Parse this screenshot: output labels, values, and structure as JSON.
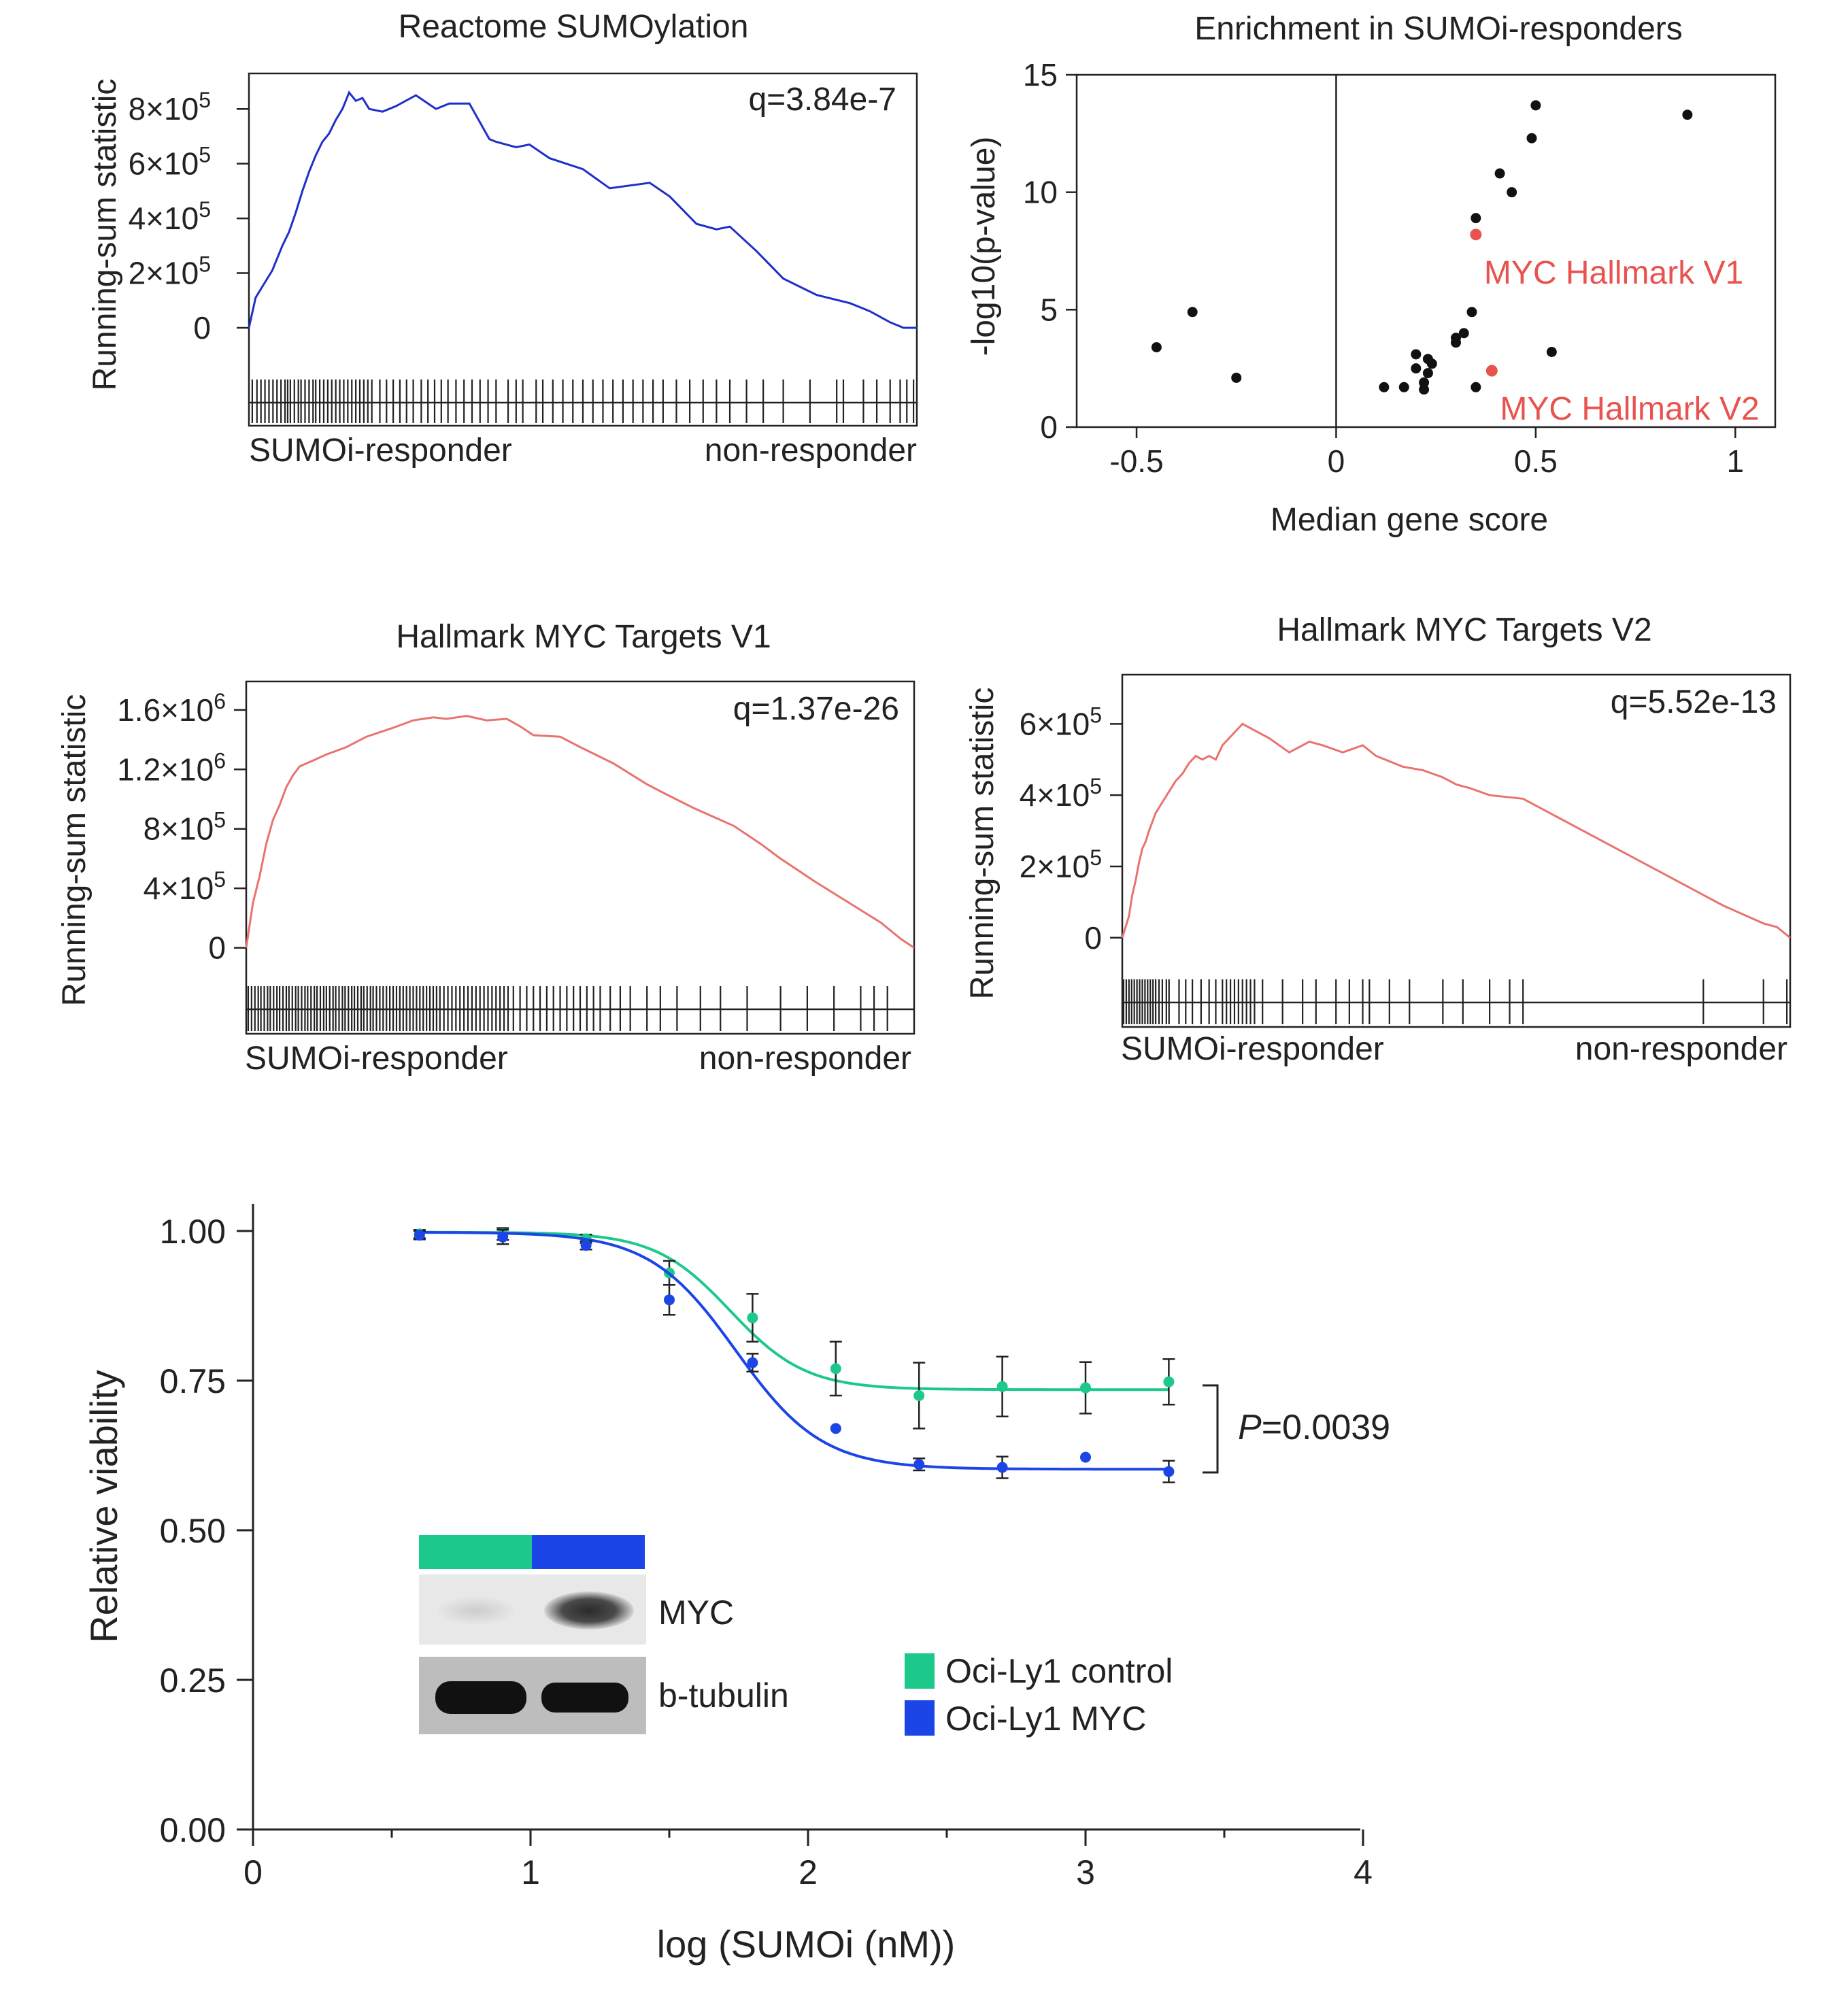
{
  "colors": {
    "reactome": "#1f2fc8",
    "myc": "#e8746d",
    "highlight": "#e8534f",
    "points": "#111111",
    "control": "#1dc98a",
    "myc_line": "#1b45e6"
  },
  "chart_data": [
    {
      "id": "reactome",
      "type": "line",
      "title": "Reactome SUMOylation",
      "ylabel": "Running-sum statistic",
      "annotation": "q=3.84e-7",
      "xlabel_left": "SUMOi-responder",
      "xlabel_right": "non-responder",
      "ylim": [
        -20000,
        900000
      ],
      "yticks": [
        {
          "v": 0,
          "base": "0",
          "exp": ""
        },
        {
          "v": 200000,
          "base": "2×10",
          "exp": "5"
        },
        {
          "v": 400000,
          "base": "4×10",
          "exp": "5"
        },
        {
          "v": 600000,
          "base": "6×10",
          "exp": "5"
        },
        {
          "v": 800000,
          "base": "8×10",
          "exp": "5"
        }
      ],
      "x": [
        0,
        0.01,
        0.02,
        0.035,
        0.05,
        0.06,
        0.07,
        0.08,
        0.09,
        0.1,
        0.11,
        0.12,
        0.13,
        0.14,
        0.15,
        0.16,
        0.17,
        0.18,
        0.2,
        0.22,
        0.25,
        0.28,
        0.3,
        0.33,
        0.36,
        0.37,
        0.4,
        0.42,
        0.45,
        0.5,
        0.54,
        0.6,
        0.63,
        0.67,
        0.7,
        0.72,
        0.76,
        0.8,
        0.85,
        0.9,
        0.93,
        0.96,
        0.98,
        1.0
      ],
      "values": [
        0,
        110000,
        150000,
        210000,
        300000,
        350000,
        420000,
        500000,
        570000,
        630000,
        680000,
        710000,
        760000,
        800000,
        860000,
        830000,
        840000,
        800000,
        790000,
        810000,
        850000,
        800000,
        820000,
        820000,
        690000,
        680000,
        660000,
        670000,
        620000,
        580000,
        510000,
        530000,
        480000,
        380000,
        360000,
        370000,
        280000,
        180000,
        120000,
        90000,
        60000,
        20000,
        0,
        0
      ],
      "hits": [
        0.005,
        0.012,
        0.018,
        0.024,
        0.03,
        0.036,
        0.042,
        0.048,
        0.054,
        0.058,
        0.062,
        0.068,
        0.074,
        0.078,
        0.084,
        0.09,
        0.096,
        0.1,
        0.106,
        0.112,
        0.118,
        0.124,
        0.13,
        0.136,
        0.142,
        0.148,
        0.154,
        0.16,
        0.166,
        0.172,
        0.178,
        0.184,
        0.196,
        0.206,
        0.216,
        0.226,
        0.236,
        0.246,
        0.258,
        0.268,
        0.278,
        0.288,
        0.298,
        0.31,
        0.322,
        0.334,
        0.346,
        0.358,
        0.37,
        0.388,
        0.4,
        0.41,
        0.43,
        0.44,
        0.455,
        0.47,
        0.485,
        0.5,
        0.515,
        0.53,
        0.545,
        0.56,
        0.575,
        0.59,
        0.605,
        0.62,
        0.64,
        0.66,
        0.68,
        0.7,
        0.72,
        0.745,
        0.77,
        0.8,
        0.84,
        0.88,
        0.89,
        0.92,
        0.94,
        0.96,
        0.975,
        0.985,
        0.995
      ]
    },
    {
      "id": "enrichment",
      "type": "scatter",
      "title": "Enrichment in SUMOi-responders",
      "xlabel": "Median gene score",
      "ylabel": "-log10(p-value)",
      "xlim": [
        -0.65,
        1.1
      ],
      "ylim": [
        0,
        15
      ],
      "xticks": [
        -0.5,
        0,
        0.5,
        1
      ],
      "xtick_labels": [
        "-0.5",
        "0",
        "0.5",
        "1"
      ],
      "yticks": [
        0,
        5,
        10,
        15
      ],
      "ytick_labels": [
        "0",
        "5",
        "10",
        "15"
      ],
      "points": [
        [
          -0.45,
          3.4
        ],
        [
          -0.36,
          4.9
        ],
        [
          -0.25,
          2.1
        ],
        [
          0.12,
          1.7
        ],
        [
          0.17,
          1.7
        ],
        [
          0.2,
          2.5
        ],
        [
          0.2,
          3.1
        ],
        [
          0.22,
          1.9
        ],
        [
          0.22,
          1.6
        ],
        [
          0.23,
          2.3
        ],
        [
          0.23,
          2.9
        ],
        [
          0.24,
          2.7
        ],
        [
          0.3,
          3.8
        ],
        [
          0.3,
          3.6
        ],
        [
          0.32,
          4.0
        ],
        [
          0.34,
          4.9
        ],
        [
          0.35,
          1.7
        ],
        [
          0.35,
          8.9
        ],
        [
          0.41,
          10.8
        ],
        [
          0.44,
          10.0
        ],
        [
          0.49,
          12.3
        ],
        [
          0.5,
          13.7
        ],
        [
          0.54,
          3.2
        ],
        [
          0.88,
          13.3
        ]
      ],
      "highlights": [
        {
          "x": 0.35,
          "y": 8.2,
          "label": "MYC Hallmark V1"
        },
        {
          "x": 0.39,
          "y": 2.4,
          "label": "MYC Hallmark V2"
        }
      ]
    },
    {
      "id": "myc_v1",
      "type": "line",
      "title": "Hallmark MYC Targets V1",
      "ylabel": "Running-sum statistic",
      "annotation": "q=1.37e-26",
      "xlabel_left": "SUMOi-responder",
      "xlabel_right": "non-responder",
      "ylim": [
        -20000,
        1700000
      ],
      "yticks": [
        {
          "v": 0,
          "base": "0",
          "exp": ""
        },
        {
          "v": 400000,
          "base": "4×10",
          "exp": "5"
        },
        {
          "v": 800000,
          "base": "8×10",
          "exp": "5"
        },
        {
          "v": 1200000,
          "base": "1.2×10",
          "exp": "6"
        },
        {
          "v": 1600000,
          "base": "1.6×10",
          "exp": "6"
        }
      ],
      "x": [
        0,
        0.01,
        0.02,
        0.03,
        0.04,
        0.05,
        0.06,
        0.07,
        0.08,
        0.1,
        0.12,
        0.15,
        0.18,
        0.22,
        0.25,
        0.28,
        0.3,
        0.33,
        0.36,
        0.39,
        0.41,
        0.43,
        0.47,
        0.5,
        0.55,
        0.6,
        0.63,
        0.67,
        0.7,
        0.73,
        0.77,
        0.8,
        0.85,
        0.9,
        0.95,
        0.98,
        1.0
      ],
      "values": [
        0,
        300000,
        480000,
        700000,
        860000,
        960000,
        1080000,
        1160000,
        1220000,
        1260000,
        1300000,
        1350000,
        1420000,
        1480000,
        1530000,
        1550000,
        1540000,
        1560000,
        1530000,
        1540000,
        1490000,
        1430000,
        1420000,
        1350000,
        1240000,
        1100000,
        1030000,
        940000,
        880000,
        820000,
        700000,
        600000,
        450000,
        310000,
        170000,
        60000,
        0
      ],
      "hits": [
        0.003,
        0.008,
        0.013,
        0.018,
        0.022,
        0.027,
        0.032,
        0.036,
        0.041,
        0.046,
        0.05,
        0.055,
        0.06,
        0.064,
        0.069,
        0.074,
        0.078,
        0.083,
        0.088,
        0.092,
        0.097,
        0.102,
        0.106,
        0.111,
        0.116,
        0.12,
        0.125,
        0.13,
        0.134,
        0.139,
        0.144,
        0.148,
        0.153,
        0.158,
        0.162,
        0.167,
        0.172,
        0.176,
        0.181,
        0.186,
        0.19,
        0.195,
        0.2,
        0.205,
        0.21,
        0.215,
        0.22,
        0.225,
        0.23,
        0.235,
        0.24,
        0.245,
        0.25,
        0.255,
        0.26,
        0.265,
        0.27,
        0.275,
        0.28,
        0.285,
        0.29,
        0.296,
        0.302,
        0.308,
        0.314,
        0.32,
        0.326,
        0.332,
        0.338,
        0.344,
        0.35,
        0.356,
        0.362,
        0.368,
        0.374,
        0.38,
        0.386,
        0.392,
        0.4,
        0.41,
        0.42,
        0.43,
        0.44,
        0.45,
        0.46,
        0.47,
        0.48,
        0.49,
        0.5,
        0.51,
        0.52,
        0.53,
        0.545,
        0.56,
        0.575,
        0.6,
        0.62,
        0.645,
        0.68,
        0.71,
        0.75,
        0.8,
        0.84,
        0.88,
        0.92,
        0.94,
        0.96
      ]
    },
    {
      "id": "myc_v2",
      "type": "line",
      "title": "Hallmark MYC Targets V2",
      "ylabel": "Running-sum statistic",
      "annotation": "q=5.52e-13",
      "xlabel_left": "SUMOi-responder",
      "xlabel_right": "non-responder",
      "ylim": [
        -10000,
        700000
      ],
      "yticks": [
        {
          "v": 0,
          "base": "0",
          "exp": ""
        },
        {
          "v": 200000,
          "base": "2×10",
          "exp": "5"
        },
        {
          "v": 400000,
          "base": "4×10",
          "exp": "5"
        },
        {
          "v": 600000,
          "base": "6×10",
          "exp": "5"
        }
      ],
      "x": [
        0,
        0.01,
        0.015,
        0.02,
        0.025,
        0.03,
        0.035,
        0.04,
        0.05,
        0.06,
        0.07,
        0.08,
        0.09,
        0.1,
        0.11,
        0.12,
        0.13,
        0.14,
        0.15,
        0.16,
        0.17,
        0.18,
        0.2,
        0.22,
        0.25,
        0.28,
        0.3,
        0.33,
        0.36,
        0.38,
        0.42,
        0.45,
        0.48,
        0.5,
        0.52,
        0.55,
        0.6,
        0.7,
        0.8,
        0.87,
        0.9,
        0.96,
        0.98,
        1.0
      ],
      "values": [
        0,
        60000,
        120000,
        160000,
        210000,
        250000,
        270000,
        300000,
        350000,
        380000,
        410000,
        440000,
        460000,
        490000,
        510000,
        500000,
        510000,
        500000,
        540000,
        560000,
        580000,
        600000,
        580000,
        560000,
        520000,
        550000,
        540000,
        520000,
        540000,
        510000,
        480000,
        470000,
        450000,
        430000,
        420000,
        400000,
        390000,
        290000,
        190000,
        120000,
        90000,
        40000,
        30000,
        0
      ],
      "hits": [
        0.002,
        0.006,
        0.01,
        0.014,
        0.018,
        0.022,
        0.026,
        0.03,
        0.034,
        0.038,
        0.042,
        0.046,
        0.05,
        0.055,
        0.06,
        0.066,
        0.07,
        0.085,
        0.095,
        0.105,
        0.118,
        0.13,
        0.14,
        0.15,
        0.156,
        0.162,
        0.168,
        0.174,
        0.18,
        0.186,
        0.192,
        0.198,
        0.21,
        0.24,
        0.27,
        0.29,
        0.32,
        0.34,
        0.36,
        0.37,
        0.4,
        0.43,
        0.48,
        0.51,
        0.55,
        0.58,
        0.6,
        0.87,
        0.96,
        0.995
      ]
    },
    {
      "id": "viability",
      "type": "scatter",
      "xlabel": "log (SUMOi (nM))",
      "ylabel": "Relative viability",
      "xlim": [
        0,
        4
      ],
      "ylim": [
        0,
        1
      ],
      "xticks": [
        0,
        1,
        2,
        3,
        4
      ],
      "xtick_labels": [
        "0",
        "1",
        "2",
        "3",
        "4"
      ],
      "yticks": [
        0,
        0.25,
        0.5,
        0.75,
        1.0
      ],
      "ytick_labels": [
        "0.00",
        "0.25",
        "0.50",
        "0.75",
        "1.00"
      ],
      "series": [
        {
          "name": "Oci-Ly1 control",
          "x": [
            0.6,
            0.9,
            1.2,
            1.5,
            1.8,
            2.1,
            2.4,
            2.7,
            3.0,
            3.3
          ],
          "values": [
            0.995,
            0.995,
            0.987,
            0.93,
            0.855,
            0.77,
            0.725,
            0.74,
            0.738,
            0.748
          ],
          "errors": [
            0.007,
            0.01,
            0.007,
            0.02,
            0.04,
            0.045,
            0.055,
            0.05,
            0.043,
            0.038
          ],
          "fit": {
            "top": 0.998,
            "bottom": 0.735,
            "ec50": 1.72,
            "hill": 3.2
          }
        },
        {
          "name": "Oci-Ly1 MYC",
          "x": [
            0.6,
            0.9,
            1.2,
            1.5,
            1.8,
            2.1,
            2.4,
            2.7,
            3.0,
            3.3
          ],
          "values": [
            0.993,
            0.99,
            0.976,
            0.885,
            0.78,
            0.67,
            0.61,
            0.605,
            0.622,
            0.598
          ],
          "errors": [
            0.007,
            0.012,
            0.007,
            0.025,
            0.015,
            0.0,
            0.01,
            0.018,
            0.0,
            0.018
          ],
          "fit": {
            "top": 0.998,
            "bottom": 0.602,
            "ec50": 1.74,
            "hill": 2.8
          }
        }
      ],
      "pvalue": {
        "label": "P",
        "value": "=0.0039"
      },
      "inset": {
        "rows": [
          "MYC",
          "b-tubulin"
        ]
      }
    }
  ]
}
